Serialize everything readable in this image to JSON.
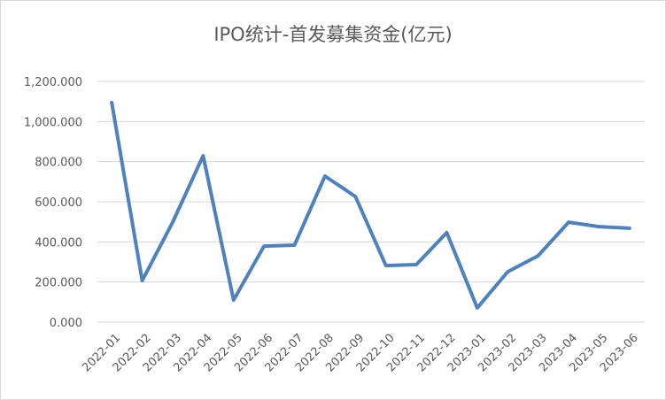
{
  "chart_data": {
    "type": "line",
    "title": "IPO统计-首发募集资金(亿元)",
    "categories": [
      "2022-01",
      "2022-02",
      "2022-03",
      "2022-04",
      "2022-05",
      "2022-06",
      "2022-07",
      "2022-08",
      "2022-09",
      "2022-10",
      "2022-11",
      "2022-12",
      "2023-01",
      "2023-02",
      "2023-03",
      "2023-04",
      "2023-05",
      "2023-06"
    ],
    "values": [
      1094,
      207,
      498,
      829,
      110,
      379,
      384,
      728,
      626,
      282,
      287,
      446,
      71,
      251,
      331,
      498,
      476,
      468
    ],
    "color": "#4f81bd",
    "ylim": [
      0,
      1200
    ],
    "yticks": [
      {
        "value": 0,
        "label": "0.000"
      },
      {
        "value": 200,
        "label": "200.000"
      },
      {
        "value": 400,
        "label": "400.000"
      },
      {
        "value": 600,
        "label": "600.000"
      },
      {
        "value": 800,
        "label": "800.000"
      },
      {
        "value": 1000,
        "label": "1,000.000"
      },
      {
        "value": 1200,
        "label": "1,200.000"
      }
    ],
    "grid": true
  }
}
